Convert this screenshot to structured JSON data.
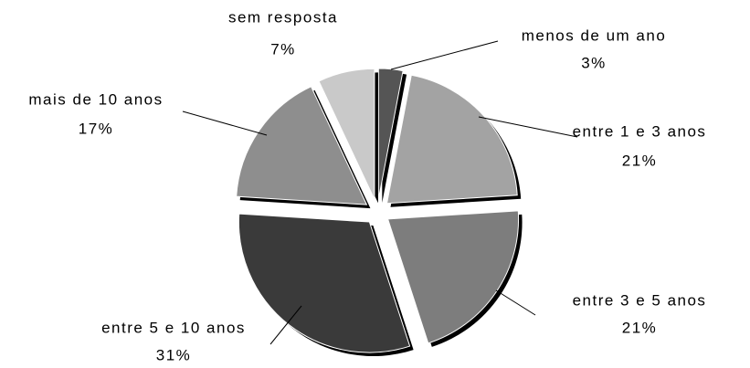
{
  "chart_data": {
    "type": "pie",
    "categories": [
      "menos de um ano",
      "entre 1 e 3 anos",
      "entre 3 e 5 anos",
      "entre 5 e 10 anos",
      "mais de 10 anos",
      "sem resposta"
    ],
    "values": [
      3,
      21,
      21,
      31,
      17,
      7
    ],
    "value_labels": [
      "3%",
      "21%",
      "21%",
      "31%",
      "17%",
      "7%"
    ],
    "colors": [
      "#555555",
      "#a3a3a3",
      "#7d7d7d",
      "#3a3a3a",
      "#8e8e8e",
      "#c9c9c9"
    ]
  }
}
